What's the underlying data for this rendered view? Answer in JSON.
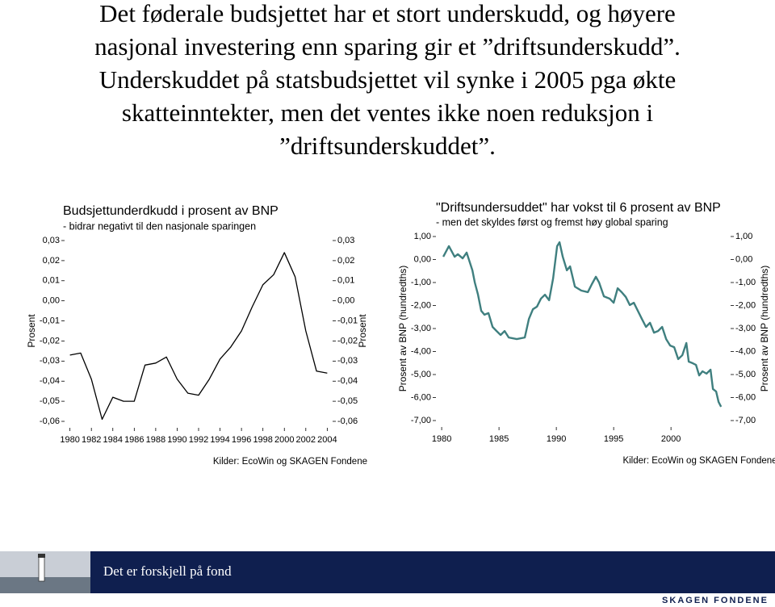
{
  "slide": {
    "title_lines": [
      "Det føderale budsjettet har et stort underskudd, og høyere",
      "nasjonal investering enn sparing gir et ”driftsunderskudd”.",
      "Underskuddet på statsbudsjettet vil synke i 2005 pga økte",
      "skatteinntekter, men det ventes ikke noen reduksjon i",
      "”driftsunderskuddet”."
    ]
  },
  "footer": {
    "text": "Det er forskjell på fond",
    "logo": "SKAGEN FONDENE"
  },
  "chart_data": [
    {
      "type": "line",
      "title": "Budsjettunderdkudd i prosent av BNP",
      "subtitle": "- bidrar negativt til den nasjonale sparingen",
      "ylabel": "Prosent",
      "y2label": "Prosent",
      "source": "Kilder: EcoWin og SKAGEN Fondene",
      "x": [
        1980,
        1981,
        1982,
        1983,
        1984,
        1985,
        1986,
        1987,
        1988,
        1989,
        1990,
        1991,
        1992,
        1993,
        1994,
        1995,
        1996,
        1997,
        1998,
        1999,
        2000,
        2001,
        2002,
        2003,
        2004
      ],
      "series": [
        {
          "color": "#000000",
          "values": [
            -0.027,
            -0.026,
            -0.039,
            -0.059,
            -0.048,
            -0.05,
            -0.05,
            -0.032,
            -0.031,
            -0.028,
            -0.039,
            -0.046,
            -0.047,
            -0.039,
            -0.029,
            -0.023,
            -0.015,
            -0.003,
            0.008,
            0.013,
            0.024,
            0.012,
            -0.015,
            -0.035,
            -0.036
          ]
        }
      ],
      "xlim": [
        1979.5,
        2004.5
      ],
      "xticks": [
        1980,
        1982,
        1984,
        1986,
        1988,
        1990,
        1992,
        1994,
        1996,
        1998,
        2000,
        2002,
        2004
      ],
      "ylim": [
        -0.06,
        0.03
      ],
      "yticks": [
        {
          "value": 0.03,
          "label": "0,03"
        },
        {
          "value": 0.02,
          "label": "0,02"
        },
        {
          "value": 0.01,
          "label": "0,01"
        },
        {
          "value": 0,
          "label": "0,00"
        },
        {
          "value": -0.01,
          "label": "-0,01"
        },
        {
          "value": -0.02,
          "label": "-0,02"
        },
        {
          "value": -0.03,
          "label": "-0,03"
        },
        {
          "value": -0.04,
          "label": "-0,04"
        },
        {
          "value": -0.05,
          "label": "-0,05"
        },
        {
          "value": -0.06,
          "label": "-0,06"
        }
      ],
      "y2lim": [
        -0.06,
        0.03
      ],
      "y2ticks": [
        {
          "value": 0.03,
          "label": "0,03"
        },
        {
          "value": 0.02,
          "label": "0,02"
        },
        {
          "value": 0.01,
          "label": "0,01"
        },
        {
          "value": 0,
          "label": "0,00"
        },
        {
          "value": -0.01,
          "label": "-0,01"
        },
        {
          "value": -0.02,
          "label": "-0,02"
        },
        {
          "value": -0.03,
          "label": "-0,03"
        },
        {
          "value": -0.04,
          "label": "-0,04"
        },
        {
          "value": -0.05,
          "label": "-0,05"
        },
        {
          "value": -0.06,
          "label": "-0,06"
        }
      ],
      "grid": false
    },
    {
      "type": "line",
      "title": "\"Driftsundersuddet\" har vokst til 6 prosent av BNP",
      "subtitle": "- men det skyldes først og fremst høy global sparing",
      "ylabel": "Prosent av BNP (hundredths)",
      "y2label": "Prosent av BNP (hundredths)",
      "source": "Kilder: EcoWin og SKAGEN Fondene",
      "x": [
        1980.14,
        1980.63,
        1981.13,
        1981.41,
        1981.83,
        1982.18,
        1982.68,
        1982.89,
        1983.17,
        1983.45,
        1983.73,
        1984.08,
        1984.44,
        1984.79,
        1985.14,
        1985.49,
        1985.85,
        1986.55,
        1987.25,
        1987.61,
        1987.96,
        1988.31,
        1988.66,
        1989.01,
        1989.37,
        1989.72,
        1990.07,
        1990.28,
        1990.56,
        1990.92,
        1991.2,
        1991.62,
        1992.18,
        1992.75,
        1993.1,
        1993.45,
        1993.73,
        1994.15,
        1994.65,
        1995,
        1995.35,
        1995.7,
        1996.06,
        1996.41,
        1996.76,
        1997.11,
        1997.46,
        1997.82,
        1998.17,
        1998.52,
        1998.87,
        1999.23,
        1999.58,
        1999.93,
        2000.28,
        2000.63,
        2000.99,
        2001.34,
        2001.55,
        2001.9,
        2002.18,
        2002.46,
        2002.75,
        2003.1,
        2003.45,
        2003.66,
        2003.94,
        2004.15,
        2004.37
      ],
      "series": [
        {
          "color": "#3f7f7f",
          "values": [
            0.12,
            0.58,
            0.12,
            0.23,
            0.05,
            0.3,
            -0.47,
            -1.0,
            -1.53,
            -2.23,
            -2.4,
            -2.33,
            -2.93,
            -3.11,
            -3.28,
            -3.11,
            -3.39,
            -3.46,
            -3.39,
            -2.58,
            -2.16,
            -2.05,
            -1.7,
            -1.53,
            -1.77,
            -0.82,
            0.58,
            0.75,
            0.12,
            -0.47,
            -0.3,
            -1.18,
            -1.35,
            -1.42,
            -1.07,
            -0.75,
            -1.0,
            -1.6,
            -1.7,
            -1.88,
            -1.25,
            -1.42,
            -1.63,
            -1.98,
            -1.88,
            -2.23,
            -2.58,
            -2.93,
            -2.75,
            -3.18,
            -3.11,
            -2.93,
            -3.46,
            -3.74,
            -3.81,
            -4.33,
            -4.16,
            -3.63,
            -4.44,
            -4.51,
            -4.58,
            -5.04,
            -4.86,
            -4.96,
            -4.79,
            -5.63,
            -5.74,
            -6.19,
            -6.4
          ]
        }
      ],
      "xlim": [
        1979.5,
        2005.2
      ],
      "xticks": [
        1980,
        1985,
        1990,
        1995,
        2000
      ],
      "ylim": [
        -7,
        1
      ],
      "yticks": [
        {
          "value": 1,
          "label": "1,00"
        },
        {
          "value": 0,
          "label": "0,00"
        },
        {
          "value": -1,
          "label": "-1,00"
        },
        {
          "value": -2,
          "label": "-2,00"
        },
        {
          "value": -3,
          "label": "-3,00"
        },
        {
          "value": -4,
          "label": "-4,00"
        },
        {
          "value": -5,
          "label": "-5,00"
        },
        {
          "value": -6,
          "label": "-6,00"
        },
        {
          "value": -7,
          "label": "-7,00"
        }
      ],
      "y2lim": [
        -7,
        1
      ],
      "y2ticks": [
        {
          "value": 1,
          "label": "1,00"
        },
        {
          "value": 0,
          "label": "0,00"
        },
        {
          "value": -1,
          "label": "-1,00"
        },
        {
          "value": -2,
          "label": "-2,00"
        },
        {
          "value": -3,
          "label": "-3,00"
        },
        {
          "value": -4,
          "label": "-4,00"
        },
        {
          "value": -5,
          "label": "-5,00"
        },
        {
          "value": -6,
          "label": "-6,00"
        },
        {
          "value": -7,
          "label": "-7,00"
        }
      ],
      "grid": false
    }
  ]
}
